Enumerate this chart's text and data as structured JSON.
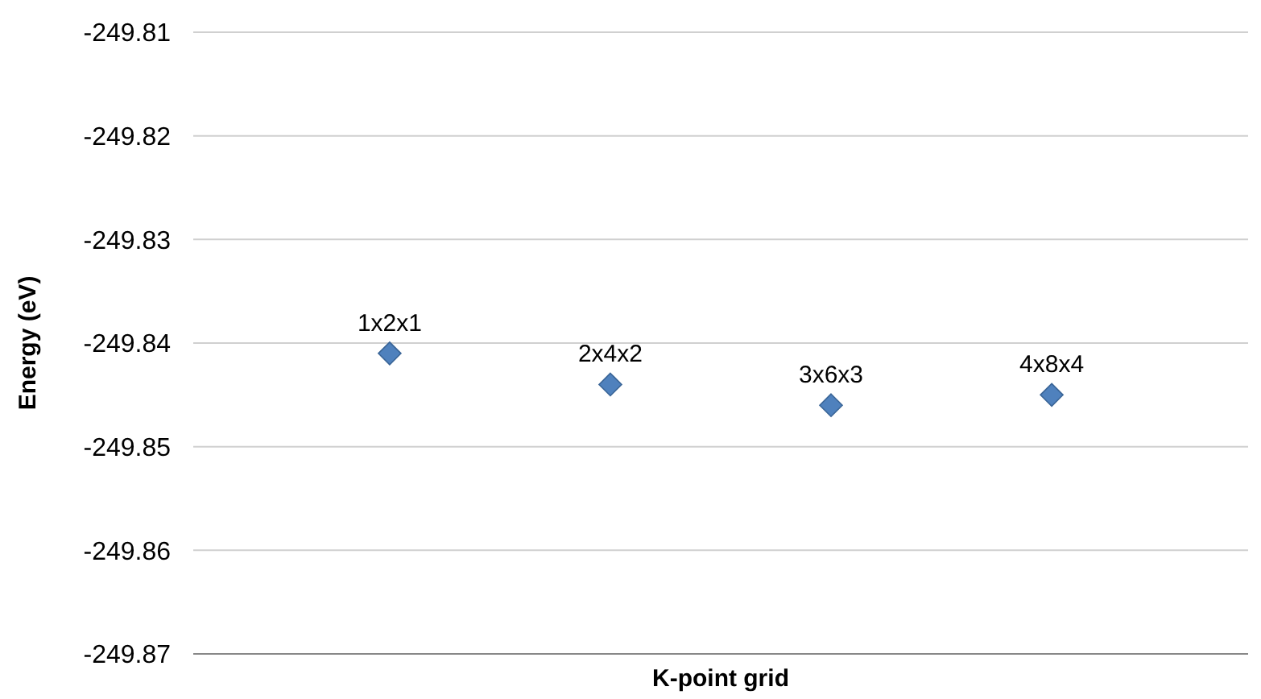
{
  "chart_data": {
    "type": "scatter",
    "xlabel": "K-point grid",
    "ylabel": "Energy (eV)",
    "categories": [
      null,
      null,
      null,
      null
    ],
    "series": [
      {
        "color": "#4f81bd",
        "values": [
          -249.841,
          -249.844,
          -249.846,
          -249.845
        ],
        "value_labels": [
          "1x2x1",
          "2x4x2",
          "3x6x3",
          "4x8x4"
        ]
      }
    ],
    "ylim": [
      -249.87,
      -249.81
    ],
    "yticks": [
      -249.87,
      -249.86,
      -249.85,
      -249.84,
      -249.83,
      -249.82,
      -249.81
    ],
    "grid": "y",
    "marker": "diamond"
  }
}
